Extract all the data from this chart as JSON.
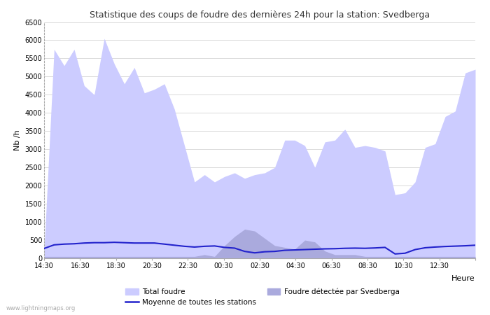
{
  "title": "Statistique des coups de foudre des dernières 24h pour la station: Svedberga",
  "ylabel": "Nb /h",
  "xlabel": "Heure",
  "ylim": [
    0,
    6500
  ],
  "yticks": [
    0,
    500,
    1000,
    1500,
    2000,
    2500,
    3000,
    3500,
    4000,
    4500,
    5000,
    5500,
    6000,
    6500
  ],
  "xtick_labels": [
    "14:30",
    "16:30",
    "18:30",
    "20:30",
    "22:30",
    "00:30",
    "02:30",
    "04:30",
    "06:30",
    "08:30",
    "10:30",
    "12:30",
    ""
  ],
  "watermark": "www.lightningmaps.org",
  "color_total": "#ccccff",
  "color_local": "#aaaadd",
  "color_mean": "#2222cc",
  "total_foudre": [
    200,
    5750,
    5300,
    5750,
    4750,
    4500,
    6050,
    5350,
    4800,
    5250,
    4550,
    4650,
    4800,
    4100,
    3100,
    2100,
    2300,
    2100,
    2250,
    2350,
    2200,
    2300,
    2350,
    2500,
    3250,
    3250,
    3100,
    2500,
    3200,
    3250,
    3550,
    3050,
    3100,
    3050,
    2950,
    1750,
    1800,
    2100,
    3050,
    3150,
    3900,
    4050,
    5100,
    5200
  ],
  "local_foudre": [
    50,
    50,
    50,
    50,
    50,
    50,
    50,
    50,
    50,
    50,
    50,
    50,
    50,
    50,
    50,
    50,
    100,
    50,
    350,
    600,
    800,
    750,
    550,
    350,
    300,
    250,
    500,
    450,
    200,
    100,
    100,
    100,
    50,
    50,
    50,
    50,
    50,
    50,
    50,
    50,
    50,
    50,
    50,
    50
  ],
  "mean_stations": [
    270,
    370,
    390,
    400,
    420,
    430,
    430,
    440,
    430,
    420,
    420,
    420,
    390,
    360,
    330,
    310,
    330,
    340,
    300,
    280,
    190,
    150,
    180,
    190,
    220,
    230,
    240,
    250,
    260,
    265,
    275,
    280,
    275,
    285,
    300,
    120,
    140,
    240,
    290,
    310,
    325,
    335,
    345,
    360
  ],
  "n_points": 44,
  "legend_total": "Total foudre",
  "legend_mean": "Moyenne de toutes les stations",
  "legend_local": "Foudre détectée par Svedberga"
}
